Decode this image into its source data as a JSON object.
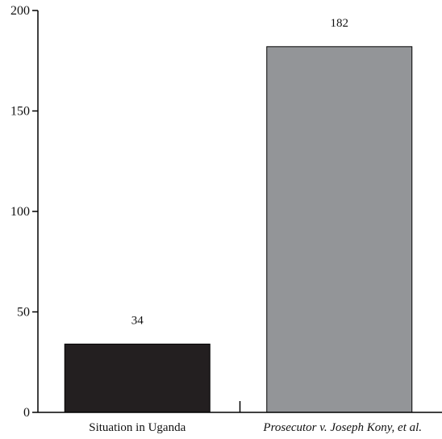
{
  "chart_data": {
    "type": "bar",
    "title": "",
    "xlabel": "",
    "ylabel": "",
    "ylim": [
      0,
      200
    ],
    "yticks": [
      "0",
      "50",
      "100",
      "150",
      "200"
    ],
    "grid": false,
    "categories": [
      "Situation in Uganda",
      "Prosecutor v. Joseph Kony, et al."
    ],
    "values": [
      34,
      182
    ],
    "value_labels": [
      "34",
      "182"
    ],
    "bar_colors": [
      "#231f20",
      "#939598"
    ],
    "category_label_styles": [
      "normal",
      "italic"
    ]
  }
}
